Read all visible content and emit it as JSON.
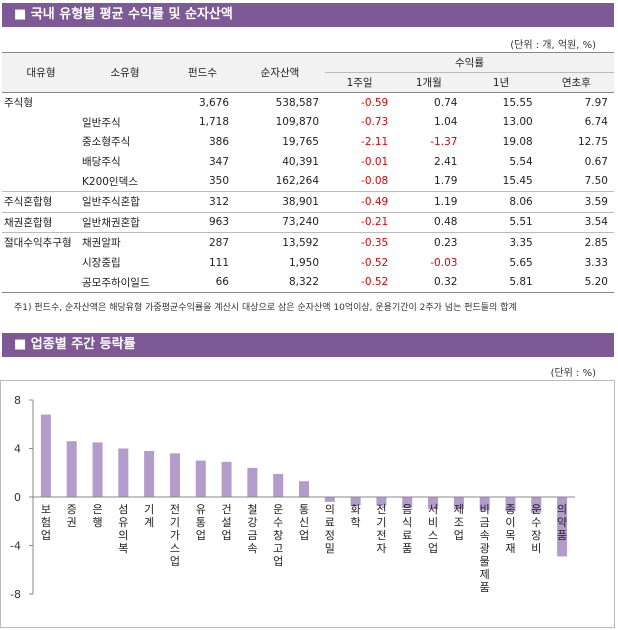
{
  "section1": {
    "title": "■ 국내 유형별 평균 수익률 및 순자산액",
    "unit": "(단위 : 개, 억원, %)",
    "table": {
      "headers": [
        "대유형",
        "소유형",
        "펀드수",
        "순자산액",
        "1주일",
        "1개월",
        "1년",
        "연초후"
      ],
      "group_header": "수익률",
      "rows": [
        [
          "주식형",
          null,
          "3,676",
          "538,587",
          "-0.59",
          "0.74",
          "15.55",
          "7.97"
        ],
        [
          null,
          "일반주식",
          "1,718",
          "109,870",
          "-0.73",
          "1.04",
          "13.00",
          "6.74"
        ],
        [
          null,
          "중소형주식",
          "386",
          "19,765",
          "-2.11",
          "-1.37",
          "19.08",
          "12.75"
        ],
        [
          null,
          "배당주식",
          "347",
          "40,391",
          "-0.01",
          "2.41",
          "5.54",
          "0.67"
        ],
        [
          null,
          "K200인덱스",
          "350",
          "162,264",
          "-0.08",
          "1.79",
          "15.45",
          "7.50"
        ],
        [
          "주식혼합형",
          "일반주식혼합",
          "312",
          "38,901",
          "-0.49",
          "1.19",
          "8.06",
          "3.59"
        ],
        [
          "채권혼합형",
          "일반채권혼합",
          "963",
          "73,240",
          "-0.21",
          "0.48",
          "5.51",
          "3.54"
        ],
        [
          "절대수익추구형",
          "채권알파",
          "287",
          "13,592",
          "-0.35",
          "0.23",
          "3.35",
          "2.85"
        ],
        [
          null,
          "시장중립",
          "111",
          "1,950",
          "-0.52",
          "-0.03",
          "5.65",
          "3.33"
        ],
        [
          null,
          "공모주하이일드",
          "66",
          "8,322",
          "-0.52",
          "0.32",
          "5.81",
          "5.20"
        ]
      ]
    },
    "footnote": "주1) 펀드수, 순자산액은 해당유형 가중평균수익률을 계산시 대상으로 삼은 순자산액 10억이상, 운용기간이 2주가 넘는 펀드들의 합계"
  },
  "chart_data": {
    "type": "bar",
    "title": "■ 업종별 주간 등락률",
    "unit": "(단위 : %)",
    "categories": [
      "보험업",
      "증권",
      "은행",
      "섬유의복",
      "기계",
      "전기가스업",
      "유통업",
      "건설업",
      "철강금속",
      "운수창고업",
      "통신업",
      "의료정밀",
      "화학",
      "전기전자",
      "음식료품",
      "서비스업",
      "제조업",
      "비금속광물제품",
      "종이목재",
      "운수장비",
      "의약품"
    ],
    "values": [
      6.8,
      4.6,
      4.5,
      4.0,
      3.8,
      3.6,
      3.0,
      2.9,
      2.4,
      1.9,
      1.3,
      -0.4,
      -0.7,
      -0.7,
      -0.9,
      -1.0,
      -1.0,
      -1.1,
      -1.2,
      -1.3,
      -4.9
    ],
    "color": "#b39bcb",
    "ylim": [
      -8,
      8
    ],
    "yticks": [
      8,
      4,
      0,
      -4,
      -8
    ]
  }
}
